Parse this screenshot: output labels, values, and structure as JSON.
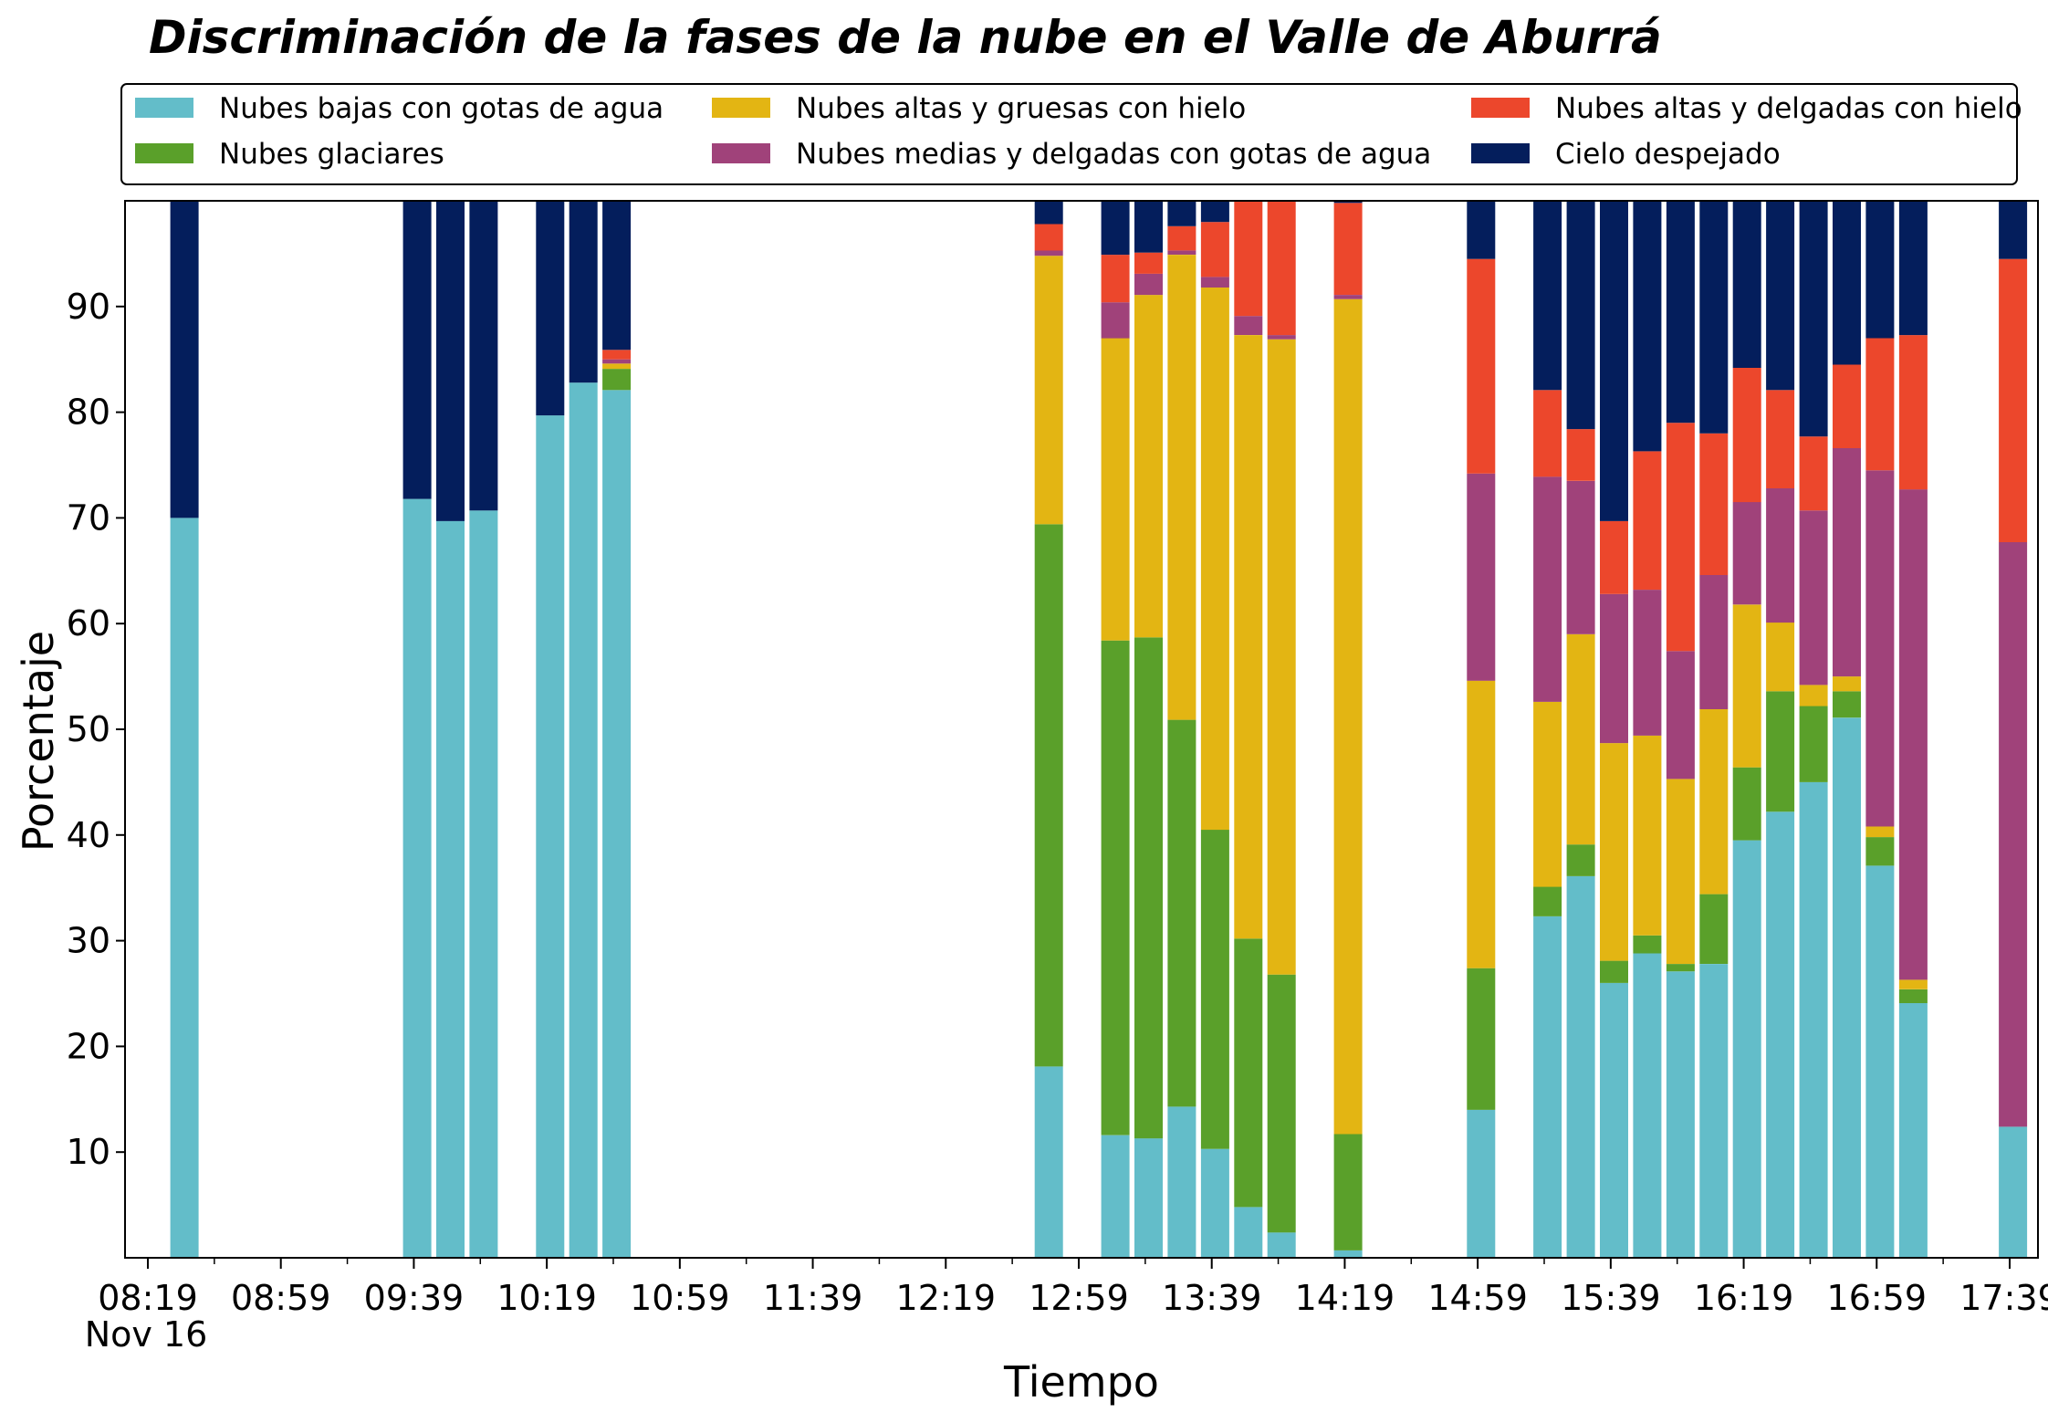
{
  "chart_data": {
    "type": "bar",
    "stacked": true,
    "title": "Discriminación de la fases de la nube en el Valle de Aburrá",
    "xlabel": "Tiempo",
    "ylabel": "Porcentaje",
    "ylim": [
      0,
      100
    ],
    "yticks": [
      10,
      20,
      30,
      40,
      50,
      60,
      70,
      80,
      90
    ],
    "xlim_minutes": [
      0,
      570
    ],
    "x_date_label": "Nov 16",
    "xticks": [
      {
        "label": "08:19",
        "minute": 0
      },
      {
        "label": "08:59",
        "minute": 40
      },
      {
        "label": "09:39",
        "minute": 80
      },
      {
        "label": "10:19",
        "minute": 120
      },
      {
        "label": "10:59",
        "minute": 160
      },
      {
        "label": "11:39",
        "minute": 200
      },
      {
        "label": "12:19",
        "minute": 240
      },
      {
        "label": "12:59",
        "minute": 280
      },
      {
        "label": "13:39",
        "minute": 320
      },
      {
        "label": "14:19",
        "minute": 360
      },
      {
        "label": "14:59",
        "minute": 400
      },
      {
        "label": "15:39",
        "minute": 440
      },
      {
        "label": "16:19",
        "minute": 480
      },
      {
        "label": "16:59",
        "minute": 520
      },
      {
        "label": "17:39",
        "minute": 560
      }
    ],
    "minor_tick_step_minutes": 20,
    "grid": false,
    "legend_position": "top",
    "series": [
      {
        "name": "Nubes bajas con gotas de agua",
        "color": "#63BDC9"
      },
      {
        "name": "Nubes glaciares",
        "color": "#5AA02A"
      },
      {
        "name": "Nubes altas y gruesas con hielo",
        "color": "#E3B513"
      },
      {
        "name": "Nubes medias y delgadas con gotas de agua",
        "color": "#A0427A"
      },
      {
        "name": "Nubes altas y delgadas con hielo",
        "color": "#EC472C"
      },
      {
        "name": "Cielo despejado",
        "color": "#041E5C"
      }
    ],
    "bars": [
      {
        "time": "08:30",
        "minute": 11,
        "values": [
          70,
          0,
          0,
          0,
          0,
          30
        ]
      },
      {
        "time": "09:40",
        "minute": 81,
        "values": [
          71.8,
          0,
          0,
          0,
          0,
          28.2
        ]
      },
      {
        "time": "09:50",
        "minute": 91,
        "values": [
          69.7,
          0,
          0,
          0,
          0,
          30.3
        ]
      },
      {
        "time": "10:00",
        "minute": 101,
        "values": [
          70.7,
          0,
          0,
          0,
          0,
          29.3
        ]
      },
      {
        "time": "10:20",
        "minute": 121,
        "values": [
          79.7,
          0,
          0,
          0,
          0,
          20.3
        ]
      },
      {
        "time": "10:30",
        "minute": 131,
        "values": [
          82.8,
          0,
          0,
          0,
          0,
          17.2
        ]
      },
      {
        "time": "10:40",
        "minute": 141,
        "values": [
          82.1,
          2.0,
          0.5,
          0.4,
          0.9,
          14.1
        ]
      },
      {
        "time": "12:50",
        "minute": 271,
        "values": [
          18.1,
          51.3,
          25.4,
          0.5,
          2.5,
          2.2
        ]
      },
      {
        "time": "13:10",
        "minute": 291,
        "values": [
          11.6,
          46.8,
          28.6,
          3.4,
          4.5,
          5.1
        ]
      },
      {
        "time": "13:20",
        "minute": 301,
        "values": [
          11.3,
          47.4,
          32.4,
          2.0,
          2.0,
          4.9
        ]
      },
      {
        "time": "13:30",
        "minute": 311,
        "values": [
          14.3,
          36.6,
          44.0,
          0.4,
          2.3,
          2.4
        ]
      },
      {
        "time": "13:40",
        "minute": 321,
        "values": [
          10.3,
          30.2,
          51.3,
          1.0,
          5.2,
          2.0
        ]
      },
      {
        "time": "13:50",
        "minute": 331,
        "values": [
          4.8,
          25.4,
          57.1,
          1.8,
          10.9,
          0
        ]
      },
      {
        "time": "14:00",
        "minute": 341,
        "values": [
          2.4,
          24.4,
          60.1,
          0.4,
          12.7,
          0
        ]
      },
      {
        "time": "14:20",
        "minute": 361,
        "values": [
          0.7,
          11.0,
          79.0,
          0.4,
          8.7,
          0.2
        ]
      },
      {
        "time": "15:00",
        "minute": 401,
        "values": [
          14.0,
          13.4,
          27.2,
          19.6,
          20.3,
          5.5
        ]
      },
      {
        "time": "15:20",
        "minute": 421,
        "values": [
          32.3,
          2.8,
          17.5,
          21.3,
          8.2,
          17.9
        ]
      },
      {
        "time": "15:30",
        "minute": 431,
        "values": [
          36.1,
          3.0,
          19.9,
          14.5,
          4.9,
          21.6
        ]
      },
      {
        "time": "15:40",
        "minute": 441,
        "values": [
          26.0,
          2.1,
          20.6,
          14.1,
          6.9,
          30.3
        ]
      },
      {
        "time": "15:50",
        "minute": 451,
        "values": [
          28.8,
          1.7,
          18.9,
          13.8,
          13.1,
          23.7
        ]
      },
      {
        "time": "16:00",
        "minute": 461,
        "values": [
          27.1,
          0.7,
          17.5,
          12.1,
          21.6,
          21.0
        ]
      },
      {
        "time": "16:10",
        "minute": 471,
        "values": [
          27.8,
          6.6,
          17.5,
          12.7,
          13.4,
          22.0
        ]
      },
      {
        "time": "16:20",
        "minute": 481,
        "values": [
          39.5,
          6.9,
          15.4,
          9.7,
          12.7,
          15.8
        ]
      },
      {
        "time": "16:30",
        "minute": 491,
        "values": [
          42.2,
          11.4,
          6.5,
          12.7,
          9.3,
          17.9
        ]
      },
      {
        "time": "16:40",
        "minute": 501,
        "values": [
          45.0,
          7.2,
          2.0,
          16.5,
          7.0,
          22.3
        ]
      },
      {
        "time": "16:50",
        "minute": 511,
        "values": [
          51.1,
          2.5,
          1.4,
          21.6,
          7.9,
          15.5
        ]
      },
      {
        "time": "17:00",
        "minute": 521,
        "values": [
          37.1,
          2.7,
          1.0,
          33.7,
          12.5,
          13.0
        ]
      },
      {
        "time": "17:10",
        "minute": 531,
        "values": [
          24.1,
          1.3,
          0.9,
          46.4,
          14.6,
          12.7
        ]
      },
      {
        "time": "17:40",
        "minute": 561,
        "values": [
          12.4,
          0,
          0,
          55.3,
          26.8,
          5.5
        ]
      }
    ]
  }
}
